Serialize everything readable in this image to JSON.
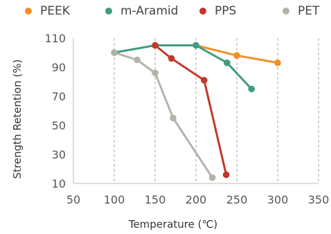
{
  "chart_data": {
    "type": "line",
    "title": "",
    "xlabel": "Temperature (℃)",
    "ylabel": "Strength Retention (%)",
    "xlim": [
      50,
      350
    ],
    "ylim": [
      10,
      110
    ],
    "x_ticks": [
      50,
      100,
      150,
      200,
      250,
      300,
      350
    ],
    "y_ticks": [
      10,
      30,
      50,
      70,
      90,
      110
    ],
    "grid": "vertical dashed",
    "legend_position": "top",
    "series": [
      {
        "name": "PEEK",
        "color": "#f0902a",
        "x": [
          200,
          250,
          300
        ],
        "y": [
          105,
          98,
          93
        ]
      },
      {
        "name": "m-Aramid",
        "color": "#3f9c7d",
        "x": [
          100,
          150,
          200,
          238,
          268
        ],
        "y": [
          100,
          105,
          105,
          93,
          75
        ]
      },
      {
        "name": "PPS",
        "color": "#c0392b",
        "x": [
          150,
          170,
          210,
          237
        ],
        "y": [
          105,
          96,
          81,
          16
        ]
      },
      {
        "name": "PET",
        "color": "#b4b3a9",
        "x": [
          100,
          128,
          150,
          172,
          220
        ],
        "y": [
          100,
          95,
          86,
          55,
          14
        ]
      }
    ]
  }
}
